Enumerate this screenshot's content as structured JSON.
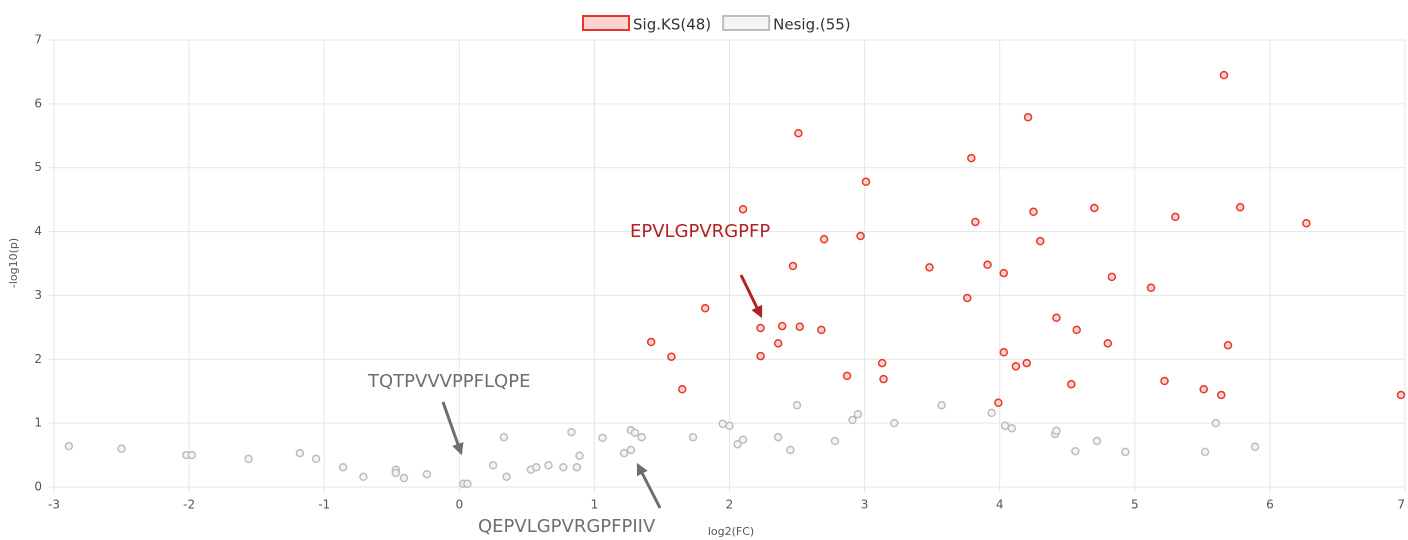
{
  "chart_data": {
    "type": "scatter",
    "x_label": "log2(FC)",
    "y_label": "-log10(p)",
    "xlim": [
      -3,
      7
    ],
    "xticks": [
      -3,
      -2,
      -1,
      0,
      1,
      2,
      3,
      4,
      5,
      6,
      7
    ],
    "ylim": [
      0,
      7
    ],
    "yticks": [
      0,
      1,
      2,
      3,
      4,
      5,
      6,
      7
    ],
    "grid": true,
    "legend": "top",
    "series": [
      {
        "name": "Sig.KS(48)",
        "color": "#e8372a",
        "x": [
          5.66,
          4.21,
          2.51,
          3.79,
          3.01,
          2.1,
          4.7,
          5.78,
          4.25,
          5.3,
          3.82,
          6.27,
          2.97,
          2.7,
          4.3,
          3.48,
          3.91,
          2.47,
          4.03,
          4.83,
          5.12,
          3.76,
          1.82,
          4.42,
          2.39,
          2.52,
          2.23,
          4.57,
          2.68,
          1.42,
          2.36,
          4.8,
          5.69,
          4.03,
          1.57,
          2.23,
          3.13,
          4.2,
          4.12,
          2.87,
          3.14,
          5.22,
          4.53,
          1.65,
          5.51,
          5.64,
          6.97,
          3.99
        ],
        "values": [
          6.45,
          5.79,
          5.54,
          5.15,
          4.78,
          4.35,
          4.37,
          4.38,
          4.31,
          4.23,
          4.15,
          4.13,
          3.93,
          3.88,
          3.85,
          3.44,
          3.48,
          3.46,
          3.35,
          3.29,
          3.12,
          2.96,
          2.8,
          2.65,
          2.52,
          2.51,
          2.49,
          2.46,
          2.46,
          2.27,
          2.25,
          2.25,
          2.22,
          2.11,
          2.04,
          2.05,
          1.94,
          1.94,
          1.89,
          1.74,
          1.69,
          1.66,
          1.61,
          1.53,
          1.53,
          1.44,
          1.44,
          1.32
        ]
      },
      {
        "name": "Nesig.(55)",
        "color": "#bdbdbd",
        "x": [
          -2.89,
          -2.5,
          -2.02,
          -1.98,
          -1.56,
          -1.18,
          -1.06,
          -0.86,
          -0.71,
          -0.47,
          -0.47,
          -0.41,
          -0.24,
          0.03,
          0.06,
          0.25,
          0.33,
          0.35,
          0.53,
          0.57,
          0.66,
          0.77,
          0.83,
          0.87,
          0.89,
          1.06,
          1.22,
          1.27,
          1.27,
          1.3,
          1.35,
          1.73,
          1.95,
          2.0,
          2.06,
          2.1,
          2.36,
          2.45,
          2.5,
          2.78,
          2.91,
          2.95,
          3.22,
          3.57,
          3.94,
          4.04,
          4.09,
          4.41,
          4.42,
          4.56,
          4.72,
          4.93,
          5.52,
          5.6,
          5.89
        ],
        "values": [
          0.64,
          0.6,
          0.5,
          0.5,
          0.44,
          0.53,
          0.44,
          0.31,
          0.16,
          0.27,
          0.22,
          0.14,
          0.2,
          0.05,
          0.05,
          0.34,
          0.78,
          0.16,
          0.27,
          0.31,
          0.34,
          0.31,
          0.86,
          0.31,
          0.49,
          0.77,
          0.53,
          0.58,
          0.89,
          0.85,
          0.78,
          0.78,
          0.99,
          0.96,
          0.67,
          0.74,
          0.78,
          0.58,
          1.28,
          0.72,
          1.05,
          1.14,
          1.0,
          1.28,
          1.16,
          0.96,
          0.92,
          0.83,
          0.88,
          0.56,
          0.72,
          0.55,
          0.55,
          1.0,
          0.63
        ]
      }
    ],
    "annotations": [
      "EPVLGPVRGPFP",
      "TQTPVVVPPFLQPE",
      "QEPVLGPVRGPFPIIV"
    ]
  }
}
